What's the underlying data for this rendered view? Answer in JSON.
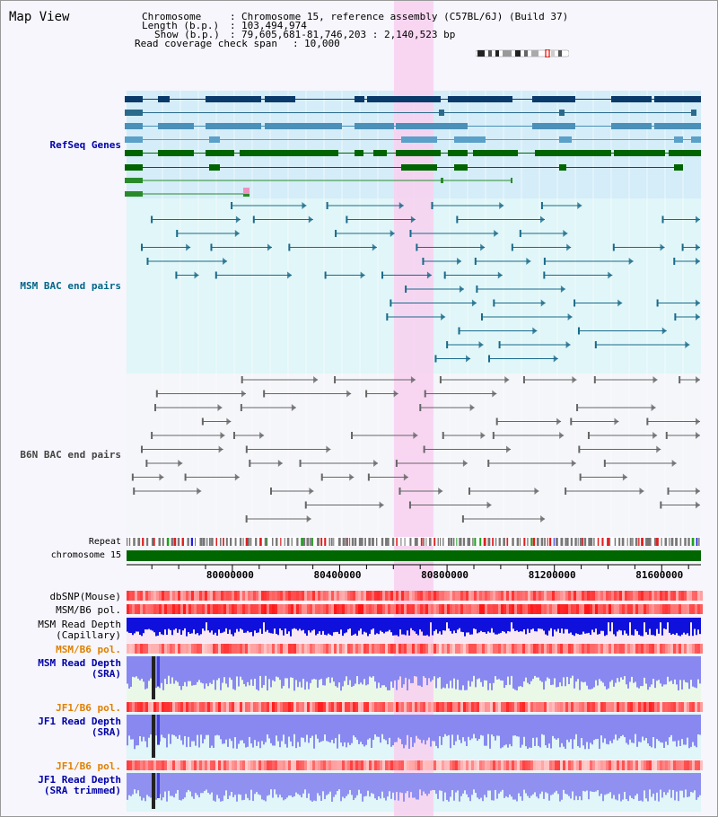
{
  "title": "Map View",
  "header": {
    "chromosome_label": "Chromosome",
    "chromosome_value": "Chromosome 15, reference assembly (C57BL/6J) (Build 37)",
    "length_label": "Length (b.p.)",
    "length_value": "103,494,974",
    "show_label": "Show (b.p.)",
    "show_value": "79,605,681-81,746,203 : 2,140,523 bp",
    "coverage_label": "Read coverage check span",
    "coverage_value": "10,000"
  },
  "tracks": {
    "refseq": {
      "label": "RefSeq Genes",
      "color": "#0000aa"
    },
    "msm_bac": {
      "label": "MSM BAC end pairs",
      "color": "#006688"
    },
    "b6n_bac": {
      "label": "B6N BAC end pairs",
      "color": "#444444"
    },
    "repeat": {
      "label": "Repeat"
    },
    "chromosome": {
      "label": "chromosome 15"
    },
    "dbsnp": {
      "label": "dbSNP(Mouse)"
    },
    "msm_b6_pol_1": {
      "label": "MSM/B6 pol."
    },
    "msm_depth_cap": {
      "line1": "MSM Read Depth",
      "line2": "(Capillary)"
    },
    "msm_b6_pol_2": {
      "label": "MSM/B6 pol.",
      "color": "#e08000"
    },
    "msm_depth_sra": {
      "line1": "MSM Read Depth",
      "line2": "(SRA)",
      "color": "#0000aa"
    },
    "jf1_b6_pol_1": {
      "label": "JF1/B6 pol.",
      "color": "#e08000"
    },
    "jf1_depth_sra": {
      "line1": "JF1 Read Depth",
      "line2": "(SRA)",
      "color": "#0000aa"
    },
    "jf1_b6_pol_2": {
      "label": "JF1/B6 pol.",
      "color": "#e08000"
    },
    "jf1_depth_trim": {
      "line1": "JF1 Read Depth",
      "line2": "(SRA trimmed)",
      "color": "#0000aa"
    }
  },
  "axis": {
    "range_bp": [
      79605681,
      81746203
    ],
    "ticks": [
      {
        "value": 80000000,
        "label": "80000000"
      },
      {
        "value": 80400000,
        "label": "80400000"
      },
      {
        "value": 80800000,
        "label": "80800000"
      },
      {
        "value": 81200000,
        "label": "81200000"
      },
      {
        "value": 81600000,
        "label": "81600000"
      }
    ]
  },
  "highlight_color": "#f8d0f0"
}
